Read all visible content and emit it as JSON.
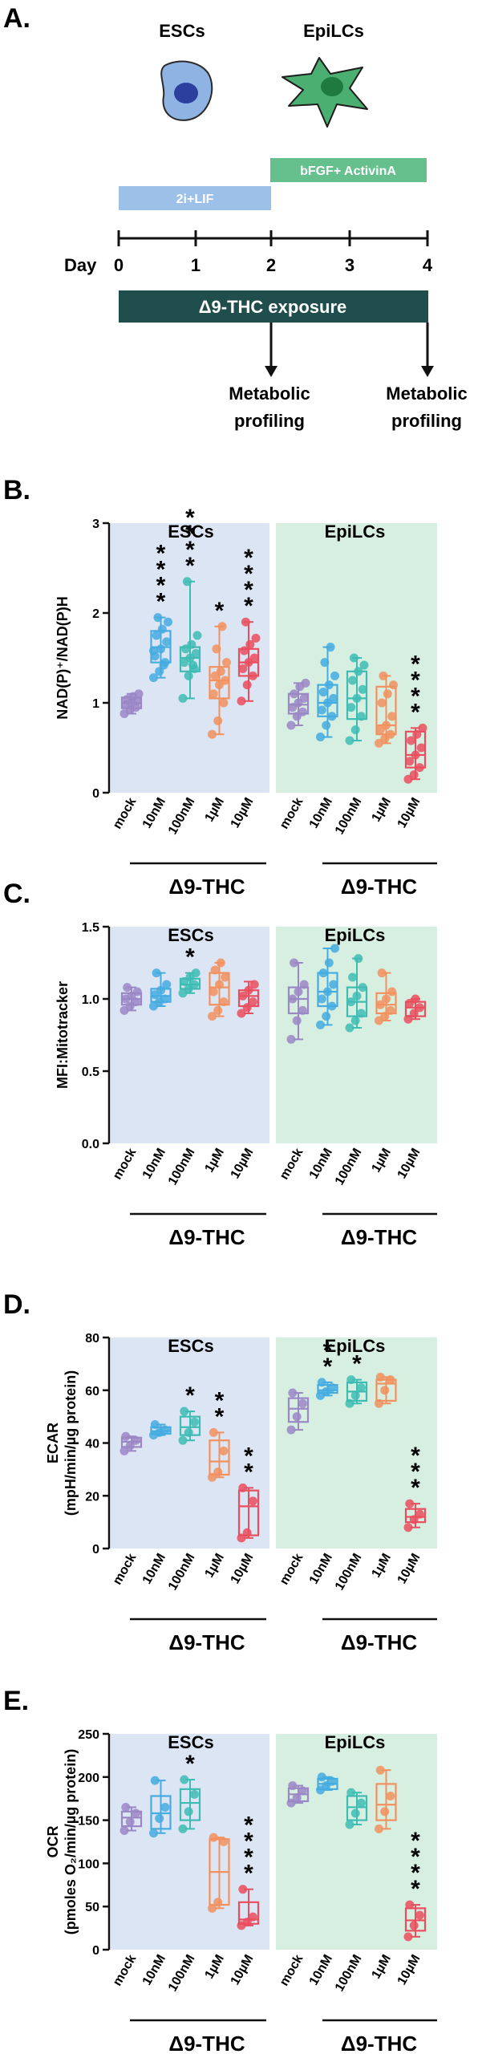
{
  "panel_a": {
    "letter": "A.",
    "esc_label": "ESCs",
    "epilc_label": "EpiLCs",
    "condition_1": "2i+LIF",
    "condition_2": "bFGF+ ActivinA",
    "day_label": "Day",
    "days": [
      "0",
      "1",
      "2",
      "3",
      "4"
    ],
    "exposure_label": "Δ9-THC exposure",
    "profiling_label_line1": "Metabolic",
    "profiling_label_line2": "profiling",
    "colors": {
      "esc_cell": "#8fb4e3",
      "esc_nucleus": "#2b3f9e",
      "epi_cell": "#4caf72",
      "epi_nucleus": "#1e7a3f",
      "cond1": "#9cc0e8",
      "cond2": "#66c08d",
      "exposure": "#1f4e4c"
    }
  },
  "chart_data": [
    {
      "panel": "B.",
      "type": "box",
      "ylabel": "NAD(P)⁺/NAD(P)H",
      "ylim": [
        0,
        3
      ],
      "yticks": [
        "0",
        "1",
        "2",
        "3"
      ],
      "group_titles": [
        "ESCs",
        "EpiLCs"
      ],
      "xlabel_groups": [
        "Δ9-THC",
        "Δ9-THC"
      ],
      "categories": [
        "mock",
        "10nM",
        "100nM",
        "1µM",
        "10µM",
        "mock",
        "10nM",
        "100nM",
        "1µM",
        "10µM"
      ],
      "boxes": [
        {
          "min": 0.88,
          "q1": 0.94,
          "median": 1.0,
          "q3": 1.06,
          "max": 1.1,
          "points": [
            0.88,
            0.92,
            0.95,
            0.98,
            1.0,
            1.02,
            1.04,
            1.07,
            1.1
          ],
          "sig": ""
        },
        {
          "min": 1.28,
          "q1": 1.45,
          "median": 1.62,
          "q3": 1.8,
          "max": 1.95,
          "points": [
            1.28,
            1.35,
            1.45,
            1.52,
            1.6,
            1.68,
            1.75,
            1.82,
            1.9,
            1.95,
            1.42,
            1.58
          ],
          "sig": "****"
        },
        {
          "min": 1.05,
          "q1": 1.35,
          "median": 1.5,
          "q3": 1.62,
          "max": 2.35,
          "points": [
            1.05,
            1.3,
            1.38,
            1.45,
            1.5,
            1.55,
            1.6,
            1.65,
            1.75,
            2.35,
            1.42
          ],
          "sig": "****"
        },
        {
          "min": 0.65,
          "q1": 1.05,
          "median": 1.25,
          "q3": 1.4,
          "max": 1.85,
          "points": [
            0.65,
            0.8,
            1.0,
            1.1,
            1.2,
            1.25,
            1.3,
            1.35,
            1.45,
            1.6,
            1.85
          ],
          "sig": "*"
        },
        {
          "min": 1.02,
          "q1": 1.3,
          "median": 1.45,
          "q3": 1.6,
          "max": 1.9,
          "points": [
            1.02,
            1.2,
            1.3,
            1.38,
            1.45,
            1.5,
            1.58,
            1.65,
            1.72,
            1.9
          ],
          "sig": "****"
        },
        {
          "min": 0.75,
          "q1": 0.88,
          "median": 0.98,
          "q3": 1.1,
          "max": 1.22,
          "points": [
            0.75,
            0.85,
            0.9,
            0.95,
            1.0,
            1.05,
            1.1,
            1.18,
            1.22
          ],
          "sig": ""
        },
        {
          "min": 0.62,
          "q1": 0.85,
          "median": 1.0,
          "q3": 1.2,
          "max": 1.62,
          "points": [
            0.62,
            0.75,
            0.85,
            0.92,
            1.0,
            1.05,
            1.12,
            1.2,
            1.3,
            1.45,
            1.62
          ],
          "sig": ""
        },
        {
          "min": 0.58,
          "q1": 0.82,
          "median": 1.05,
          "q3": 1.35,
          "max": 1.5,
          "points": [
            0.58,
            0.7,
            0.85,
            0.95,
            1.05,
            1.15,
            1.25,
            1.35,
            1.42,
            1.5
          ],
          "sig": ""
        },
        {
          "min": 0.55,
          "q1": 0.65,
          "median": 0.75,
          "q3": 1.18,
          "max": 1.3,
          "points": [
            0.55,
            0.6,
            0.65,
            0.7,
            0.75,
            0.85,
            1.0,
            1.1,
            1.2,
            1.3
          ],
          "sig": ""
        },
        {
          "min": 0.15,
          "q1": 0.28,
          "median": 0.42,
          "q3": 0.68,
          "max": 0.72,
          "points": [
            0.15,
            0.2,
            0.28,
            0.35,
            0.42,
            0.5,
            0.58,
            0.65,
            0.72
          ],
          "sig": "****"
        }
      ]
    },
    {
      "panel": "C.",
      "type": "box",
      "ylabel": "MFI:Mitotracker",
      "ylim": [
        0,
        1.5
      ],
      "yticks": [
        "0.0",
        "0.5",
        "1.0",
        "1.5"
      ],
      "group_titles": [
        "ESCs",
        "EpiLCs"
      ],
      "xlabel_groups": [
        "Δ9-THC",
        "Δ9-THC"
      ],
      "categories": [
        "mock",
        "10nM",
        "100nM",
        "1µM",
        "10µM",
        "mock",
        "10nM",
        "100nM",
        "1µM",
        "10µM"
      ],
      "boxes": [
        {
          "min": 0.92,
          "q1": 0.96,
          "median": 1.0,
          "q3": 1.04,
          "max": 1.08,
          "points": [
            0.92,
            0.95,
            0.98,
            1.0,
            1.02,
            1.05,
            1.08
          ],
          "sig": ""
        },
        {
          "min": 0.95,
          "q1": 0.98,
          "median": 1.02,
          "q3": 1.07,
          "max": 1.18,
          "points": [
            0.95,
            0.98,
            1.0,
            1.03,
            1.06,
            1.1,
            1.18
          ],
          "sig": ""
        },
        {
          "min": 1.04,
          "q1": 1.07,
          "median": 1.1,
          "q3": 1.14,
          "max": 1.18,
          "points": [
            1.04,
            1.07,
            1.1,
            1.12,
            1.15,
            1.18
          ],
          "sig": "*"
        },
        {
          "min": 0.88,
          "q1": 0.96,
          "median": 1.08,
          "q3": 1.18,
          "max": 1.25,
          "points": [
            0.88,
            0.92,
            0.98,
            1.05,
            1.1,
            1.15,
            1.2,
            1.25
          ],
          "sig": ""
        },
        {
          "min": 0.9,
          "q1": 0.95,
          "median": 1.02,
          "q3": 1.06,
          "max": 1.12,
          "points": [
            0.9,
            0.94,
            0.98,
            1.02,
            1.06,
            1.1
          ],
          "sig": ""
        },
        {
          "min": 0.72,
          "q1": 0.9,
          "median": 1.0,
          "q3": 1.08,
          "max": 1.25,
          "points": [
            0.72,
            0.85,
            0.92,
            1.0,
            1.05,
            1.1,
            1.25
          ],
          "sig": ""
        },
        {
          "min": 0.82,
          "q1": 0.95,
          "median": 1.05,
          "q3": 1.18,
          "max": 1.35,
          "points": [
            0.82,
            0.88,
            0.95,
            1.0,
            1.05,
            1.1,
            1.18,
            1.25,
            1.35
          ],
          "sig": ""
        },
        {
          "min": 0.8,
          "q1": 0.88,
          "median": 0.98,
          "q3": 1.08,
          "max": 1.28,
          "points": [
            0.8,
            0.85,
            0.9,
            0.98,
            1.02,
            1.08,
            1.15,
            1.28
          ],
          "sig": ""
        },
        {
          "min": 0.85,
          "q1": 0.9,
          "median": 0.96,
          "q3": 1.04,
          "max": 1.18,
          "points": [
            0.85,
            0.88,
            0.92,
            0.96,
            1.0,
            1.05,
            1.18
          ],
          "sig": ""
        },
        {
          "min": 0.86,
          "q1": 0.88,
          "median": 0.94,
          "q3": 0.98,
          "max": 1.0,
          "points": [
            0.86,
            0.9,
            0.94,
            0.97,
            1.0
          ],
          "sig": ""
        }
      ]
    },
    {
      "panel": "D.",
      "type": "box",
      "ylabel": "ECAR",
      "ylabel2": "(mpH/min/µg protein)",
      "ylim": [
        0,
        80
      ],
      "yticks": [
        "0",
        "20",
        "40",
        "60",
        "80"
      ],
      "group_titles": [
        "ESCs",
        "EpiLCs"
      ],
      "xlabel_groups": [
        "Δ9-THC",
        "Δ9-THC"
      ],
      "categories": [
        "mock",
        "10nM",
        "100nM",
        "1µM",
        "10µM",
        "mock",
        "10nM",
        "100nM",
        "1µM",
        "10µM"
      ],
      "boxes": [
        {
          "min": 37,
          "q1": 38.5,
          "median": 40.5,
          "q3": 42,
          "max": 42.5,
          "points": [
            37,
            39,
            41,
            42.5
          ],
          "sig": ""
        },
        {
          "min": 43,
          "q1": 43.5,
          "median": 44.5,
          "q3": 46,
          "max": 47,
          "points": [
            43,
            44,
            45,
            47
          ],
          "sig": ""
        },
        {
          "min": 41,
          "q1": 43,
          "median": 46,
          "q3": 50,
          "max": 52,
          "points": [
            41,
            44,
            48,
            52
          ],
          "sig": "*"
        },
        {
          "min": 27,
          "q1": 28,
          "median": 33,
          "q3": 41,
          "max": 44,
          "points": [
            27,
            29,
            37,
            44
          ],
          "sig": "**"
        },
        {
          "min": 4,
          "q1": 5,
          "median": 16,
          "q3": 22,
          "max": 23,
          "points": [
            4,
            6,
            18,
            23
          ],
          "sig": "**"
        },
        {
          "min": 45,
          "q1": 48,
          "median": 53,
          "q3": 57,
          "max": 59,
          "points": [
            45,
            50,
            55,
            59
          ],
          "sig": ""
        },
        {
          "min": 58,
          "q1": 59,
          "median": 60,
          "q3": 62,
          "max": 63,
          "points": [
            58,
            59.5,
            61,
            63
          ],
          "sig": "**"
        },
        {
          "min": 55,
          "q1": 56,
          "median": 59.5,
          "q3": 63,
          "max": 64,
          "points": [
            55,
            58,
            61,
            64
          ],
          "sig": "*"
        },
        {
          "min": 55,
          "q1": 56,
          "median": 62.5,
          "q3": 64,
          "max": 65,
          "points": [
            55,
            60,
            64,
            65
          ],
          "sig": ""
        },
        {
          "min": 8,
          "q1": 10,
          "median": 12,
          "q3": 15,
          "max": 17,
          "points": [
            8,
            11,
            13,
            17
          ],
          "sig": "***"
        }
      ]
    },
    {
      "panel": "E.",
      "type": "box",
      "ylabel": "OCR",
      "ylabel2": "(pmoles O₂/min/µg protein)",
      "ylim": [
        0,
        250
      ],
      "yticks": [
        "0",
        "50",
        "100",
        "150",
        "200",
        "250"
      ],
      "group_titles": [
        "ESCs",
        "EpiLCs"
      ],
      "xlabel_groups": [
        "Δ9-THC",
        "Δ9-THC"
      ],
      "categories": [
        "mock",
        "10nM",
        "100nM",
        "1µM",
        "10µM",
        "mock",
        "10nM",
        "100nM",
        "1µM",
        "10µM"
      ],
      "boxes": [
        {
          "min": 138,
          "q1": 143,
          "median": 153,
          "q3": 160,
          "max": 165,
          "points": [
            138,
            148,
            158,
            165
          ],
          "sig": ""
        },
        {
          "min": 135,
          "q1": 140,
          "median": 158,
          "q3": 178,
          "max": 196,
          "points": [
            135,
            152,
            165,
            196
          ],
          "sig": ""
        },
        {
          "min": 140,
          "q1": 150,
          "median": 170,
          "q3": 186,
          "max": 197,
          "points": [
            140,
            160,
            180,
            197
          ],
          "sig": "*"
        },
        {
          "min": 48,
          "q1": 52,
          "median": 90,
          "q3": 128,
          "max": 130,
          "points": [
            48,
            55,
            125,
            130
          ],
          "sig": ""
        },
        {
          "min": 28,
          "q1": 30,
          "median": 35,
          "q3": 55,
          "max": 70,
          "points": [
            28,
            32,
            38,
            70
          ],
          "sig": "****"
        },
        {
          "min": 170,
          "q1": 172,
          "median": 180,
          "q3": 187,
          "max": 190,
          "points": [
            170,
            176,
            184,
            190
          ],
          "sig": ""
        },
        {
          "min": 185,
          "q1": 186,
          "median": 192,
          "q3": 198,
          "max": 200,
          "points": [
            185,
            190,
            195,
            200
          ],
          "sig": ""
        },
        {
          "min": 145,
          "q1": 150,
          "median": 165,
          "q3": 178,
          "max": 182,
          "points": [
            145,
            158,
            170,
            182
          ],
          "sig": ""
        },
        {
          "min": 140,
          "q1": 150,
          "median": 168,
          "q3": 192,
          "max": 208,
          "points": [
            140,
            160,
            178,
            208
          ],
          "sig": ""
        },
        {
          "min": 15,
          "q1": 22,
          "median": 34,
          "q3": 48,
          "max": 52,
          "points": [
            15,
            28,
            40,
            52
          ],
          "sig": "****"
        }
      ]
    }
  ],
  "colors": {
    "esc_bg": "#dbe5f3",
    "epi_bg": "#d6efe1",
    "series": [
      "#9b86c6",
      "#44ace0",
      "#3ebcb4",
      "#f2915e",
      "#ea4e5e"
    ],
    "series_fill": [
      "#c9bde2",
      "#a6d6f0",
      "#a9e0da",
      "#f8c6aa",
      "#f6a9b1"
    ]
  }
}
